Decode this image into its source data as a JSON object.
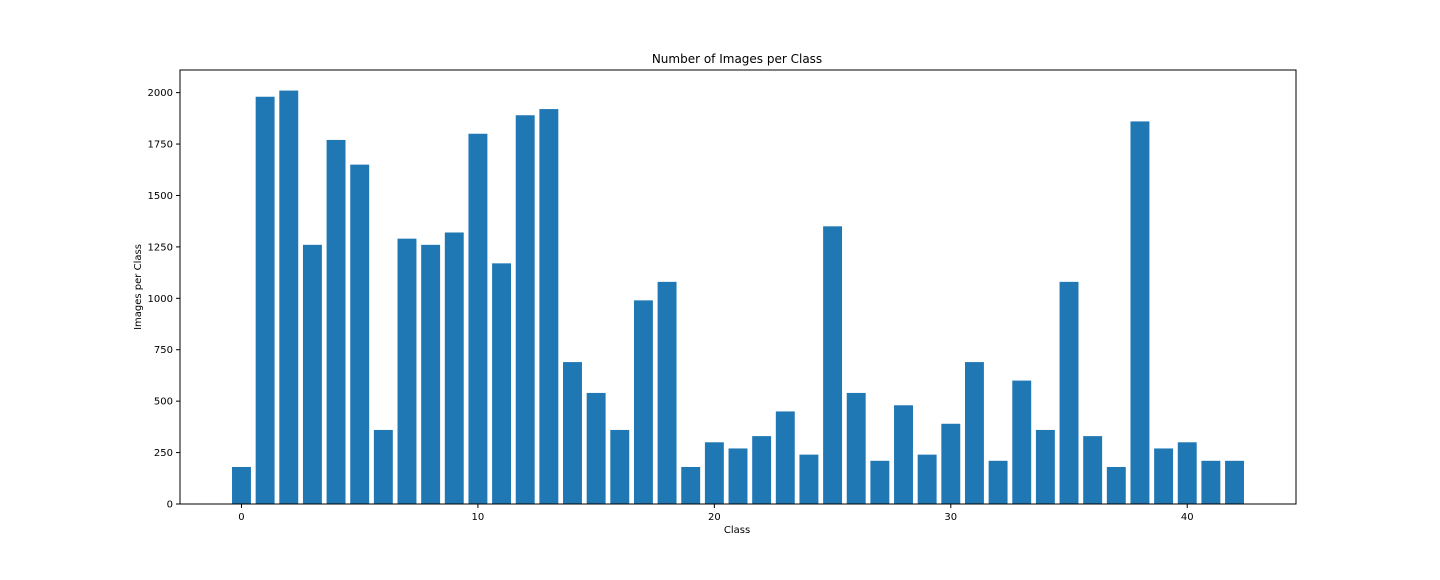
{
  "chart_data": {
    "type": "bar",
    "title": "Number of Images per Class",
    "xlabel": "Class",
    "ylabel": "Images per Class",
    "color": "#1f77b4",
    "xlim": [
      -2.6,
      44.6
    ],
    "ylim": [
      0,
      2110
    ],
    "xticks": [
      0,
      10,
      20,
      30,
      40
    ],
    "yticks": [
      0,
      250,
      500,
      750,
      1000,
      1250,
      1500,
      1750,
      2000
    ],
    "grid": false,
    "categories": [
      0,
      1,
      2,
      3,
      4,
      5,
      6,
      7,
      8,
      9,
      10,
      11,
      12,
      13,
      14,
      15,
      16,
      17,
      18,
      19,
      20,
      21,
      22,
      23,
      24,
      25,
      26,
      27,
      28,
      29,
      30,
      31,
      32,
      33,
      34,
      35,
      36,
      37,
      38,
      39,
      40,
      41,
      42
    ],
    "values": [
      180,
      1980,
      2010,
      1260,
      1770,
      1650,
      360,
      1290,
      1260,
      1320,
      1800,
      1170,
      1890,
      1920,
      690,
      540,
      360,
      990,
      1080,
      180,
      300,
      270,
      330,
      450,
      240,
      1350,
      540,
      210,
      480,
      240,
      390,
      690,
      210,
      600,
      360,
      1080,
      330,
      180,
      1860,
      270,
      300,
      210,
      210
    ]
  }
}
